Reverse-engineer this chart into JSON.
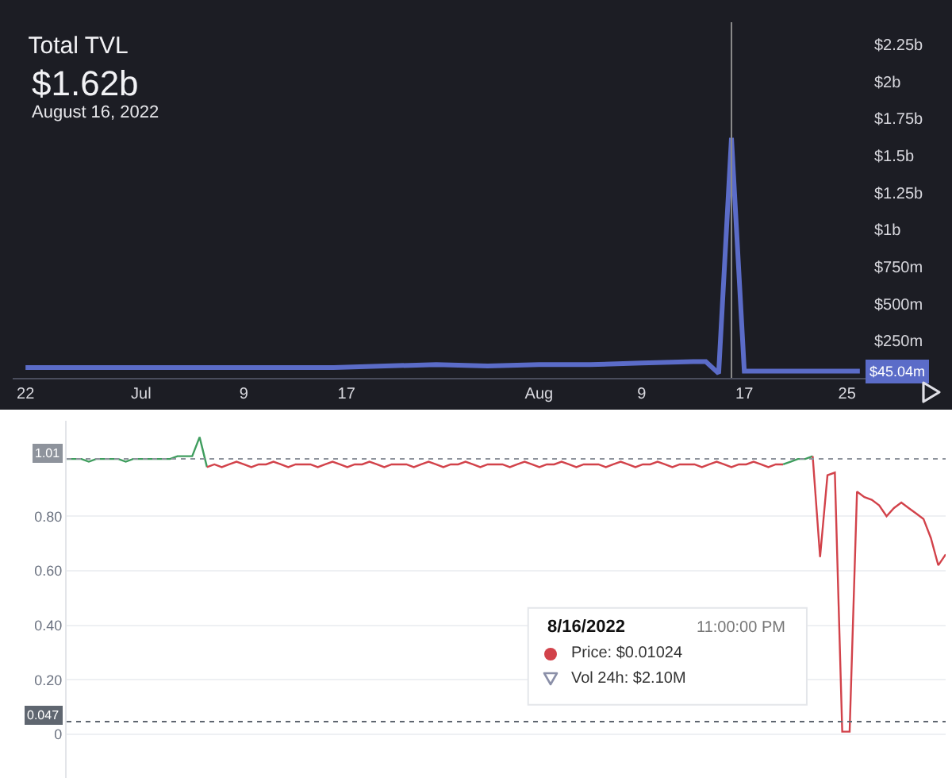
{
  "chart_data": [
    {
      "type": "line",
      "title": "Total TVL",
      "subtitle": "$1.62b",
      "annotations": [
        "August 16, 2022",
        {
          "text": "$45.04m",
          "x": "2022-08-26",
          "y": 45040000
        }
      ],
      "x": [
        "2022-06-22",
        "2022-06-26",
        "2022-06-30",
        "2022-07-04",
        "2022-07-08",
        "2022-07-12",
        "2022-07-16",
        "2022-07-20",
        "2022-07-24",
        "2022-07-28",
        "2022-08-01",
        "2022-08-05",
        "2022-08-09",
        "2022-08-13",
        "2022-08-14",
        "2022-08-15",
        "2022-08-16",
        "2022-08-17",
        "2022-08-21",
        "2022-08-26"
      ],
      "series": [
        {
          "color": "#5b6cc8",
          "values": [
            70000000,
            70000000,
            70000000,
            70000000,
            70000000,
            70000000,
            70000000,
            80000000,
            90000000,
            80000000,
            90000000,
            90000000,
            100000000,
            110000000,
            110000000,
            30000000,
            1620000000,
            45040000,
            45040000,
            45040000
          ]
        }
      ],
      "xlim": [
        "2022-06-21",
        "2022-08-27"
      ],
      "xticks": [
        {
          "value": "2022-06-22",
          "label": "22"
        },
        {
          "value": "2022-07-01",
          "label": "Jul"
        },
        {
          "value": "2022-07-09",
          "label": "9"
        },
        {
          "value": "2022-07-17",
          "label": "17"
        },
        {
          "value": "2022-08-01",
          "label": "Aug"
        },
        {
          "value": "2022-08-09",
          "label": "9"
        },
        {
          "value": "2022-08-17",
          "label": "17"
        },
        {
          "value": "2022-08-25",
          "label": "25"
        }
      ],
      "ylim": [
        0,
        2400000000
      ],
      "yticks": [
        {
          "value": 250000000,
          "label": "$250m"
        },
        {
          "value": 500000000,
          "label": "$500m"
        },
        {
          "value": 750000000,
          "label": "$750m"
        },
        {
          "value": 1000000000,
          "label": "$1b"
        },
        {
          "value": 1250000000,
          "label": "$1.25b"
        },
        {
          "value": 1500000000,
          "label": "$1.5b"
        },
        {
          "value": 1750000000,
          "label": "$1.75b"
        },
        {
          "value": 2000000000,
          "label": "$2b"
        },
        {
          "value": 2250000000,
          "label": "$2.25b"
        }
      ],
      "ref_lines": [
        {
          "axis": "x",
          "value": "2022-08-16",
          "color": "#8a8a8a"
        }
      ]
    },
    {
      "type": "line",
      "annotations": [
        "8/16/2022",
        "11:00:00 PM",
        "Price: $0.01024",
        "Vol 24h: $2.10M"
      ],
      "categories": [
        null,
        null,
        null,
        null,
        null,
        null,
        null,
        null,
        null,
        null,
        null,
        null,
        null,
        null,
        null,
        null,
        null,
        null,
        null,
        null,
        null,
        null,
        null,
        null,
        null,
        null,
        null,
        null,
        null,
        null,
        null,
        null,
        null,
        null,
        null,
        null,
        null,
        null,
        null,
        null,
        null,
        null,
        null,
        null,
        null,
        null,
        null,
        null,
        null,
        null,
        null,
        null,
        null,
        null,
        null,
        null,
        null,
        null,
        null,
        null,
        null,
        null,
        null,
        null,
        null,
        null,
        null,
        null,
        null,
        null,
        null,
        null,
        null,
        null,
        null,
        null,
        null,
        null,
        null,
        null,
        null,
        null,
        null,
        null,
        null,
        null,
        null,
        null,
        null,
        null,
        null,
        null,
        null,
        null,
        null,
        null,
        null,
        null,
        null,
        null,
        null,
        null,
        null,
        null,
        null,
        null,
        null,
        null,
        null,
        null,
        null,
        null,
        null,
        null,
        null,
        null,
        null,
        null,
        null,
        null
      ],
      "series": [
        {
          "color": "#3f9d5e",
          "values": [
            1.01,
            1.01,
            1.01,
            1.0,
            1.01,
            1.01,
            1.01,
            1.01,
            1.0,
            1.01,
            1.01,
            1.01,
            1.01,
            1.01,
            1.01,
            1.02,
            1.02,
            1.02,
            1.09,
            0.98,
            null,
            null,
            null,
            null,
            null,
            null,
            null,
            null,
            null,
            null,
            null,
            null,
            null,
            null,
            null,
            null,
            null,
            null,
            null,
            null,
            null,
            null,
            null,
            null,
            null,
            null,
            null,
            null,
            null,
            null,
            null,
            null,
            null,
            null,
            null,
            null,
            null,
            null,
            null,
            null,
            null,
            null,
            null,
            null,
            null,
            null,
            null,
            null,
            null,
            null,
            null,
            null,
            null,
            null,
            null,
            null,
            null,
            null,
            null,
            null,
            null,
            null,
            null,
            null,
            null,
            null,
            null,
            null,
            null,
            null,
            null,
            null,
            null,
            null,
            null,
            null,
            null,
            null,
            null,
            null,
            null,
            null,
            null,
            null,
            null,
            null,
            null,
            null,
            null,
            null,
            null,
            null,
            null,
            null,
            null,
            null,
            null,
            null,
            null,
            null
          ]
        },
        {
          "color": "#d2424a",
          "values": [
            null,
            null,
            null,
            null,
            null,
            null,
            null,
            null,
            null,
            null,
            null,
            null,
            null,
            null,
            null,
            null,
            null,
            null,
            null,
            0.98,
            0.99,
            0.98,
            0.99,
            1.0,
            0.99,
            0.98,
            0.99,
            0.99,
            1.0,
            0.99,
            0.98,
            0.99,
            0.99,
            0.99,
            0.98,
            0.99,
            1.0,
            0.99,
            0.98,
            0.99,
            0.99,
            1.0,
            0.99,
            0.98,
            0.99,
            0.99,
            0.99,
            0.98,
            0.99,
            1.0,
            0.99,
            0.98,
            0.99,
            0.99,
            1.0,
            0.99,
            0.98,
            0.99,
            0.99,
            0.99,
            0.98,
            0.99,
            1.0,
            0.99,
            0.98,
            0.99,
            0.99,
            1.0,
            0.99,
            0.98,
            0.99,
            0.99,
            0.99,
            0.98,
            0.99,
            1.0,
            0.99,
            0.98,
            0.99,
            0.99,
            1.0,
            0.99,
            0.98,
            0.99,
            0.99,
            0.99,
            0.98,
            0.99,
            1.0,
            0.99,
            0.98,
            0.99,
            0.99,
            1.0,
            0.99,
            0.98,
            0.99,
            0.99,
            null,
            null,
            null,
            null,
            null,
            null,
            null,
            null,
            null,
            null,
            null,
            null,
            null,
            null,
            null,
            null,
            null,
            null,
            null,
            null,
            null,
            null
          ]
        },
        {
          "color": "#3f9d5e",
          "values": [
            null,
            null,
            null,
            null,
            null,
            null,
            null,
            null,
            null,
            null,
            null,
            null,
            null,
            null,
            null,
            null,
            null,
            null,
            null,
            null,
            null,
            null,
            null,
            null,
            null,
            null,
            null,
            null,
            null,
            null,
            null,
            null,
            null,
            null,
            null,
            null,
            null,
            null,
            null,
            null,
            null,
            null,
            null,
            null,
            null,
            null,
            null,
            null,
            null,
            null,
            null,
            null,
            null,
            null,
            null,
            null,
            null,
            null,
            null,
            null,
            null,
            null,
            null,
            null,
            null,
            null,
            null,
            null,
            null,
            null,
            null,
            null,
            null,
            null,
            null,
            null,
            null,
            null,
            null,
            null,
            null,
            null,
            null,
            null,
            null,
            null,
            null,
            null,
            null,
            null,
            null,
            null,
            null,
            null,
            null,
            null,
            null,
            0.99,
            1.0,
            1.01,
            1.01,
            1.02,
            null,
            null,
            null,
            null,
            null,
            null,
            null,
            null,
            null,
            null,
            null,
            null,
            null,
            null,
            null,
            null,
            null,
            null
          ]
        },
        {
          "color": "#d2424a",
          "values": [
            null,
            null,
            null,
            null,
            null,
            null,
            null,
            null,
            null,
            null,
            null,
            null,
            null,
            null,
            null,
            null,
            null,
            null,
            null,
            null,
            null,
            null,
            null,
            null,
            null,
            null,
            null,
            null,
            null,
            null,
            null,
            null,
            null,
            null,
            null,
            null,
            null,
            null,
            null,
            null,
            null,
            null,
            null,
            null,
            null,
            null,
            null,
            null,
            null,
            null,
            null,
            null,
            null,
            null,
            null,
            null,
            null,
            null,
            null,
            null,
            null,
            null,
            null,
            null,
            null,
            null,
            null,
            null,
            null,
            null,
            null,
            null,
            null,
            null,
            null,
            null,
            null,
            null,
            null,
            null,
            null,
            null,
            null,
            null,
            null,
            null,
            null,
            null,
            null,
            null,
            null,
            null,
            null,
            null,
            null,
            null,
            null,
            null,
            null,
            null,
            null,
            1.02,
            0.65,
            0.95,
            0.96,
            0.01,
            0.01,
            0.89,
            0.87,
            0.86,
            0.84,
            0.8,
            0.83,
            0.85,
            0.83,
            0.81,
            0.79,
            0.72,
            0.62,
            0.66
          ]
        }
      ],
      "ylim": [
        -0.16,
        1.15
      ],
      "yticks": [
        0,
        {
          "value": 0.2,
          "label": "0.20"
        },
        {
          "value": 0.4,
          "label": "0.40"
        },
        {
          "value": 0.6,
          "label": "0.60"
        },
        {
          "value": 0.8,
          "label": "0.80"
        }
      ],
      "grid": "y",
      "tick_labels": "y",
      "ref_lines": [
        {
          "axis": "y",
          "value": 1.01,
          "label": "1.01",
          "color": "#8e939c",
          "line_style": "dotted"
        },
        {
          "axis": "y",
          "value": 0.047,
          "label": "0.047",
          "color": "#5f6670",
          "line_style": "dotted"
        }
      ]
    }
  ]
}
